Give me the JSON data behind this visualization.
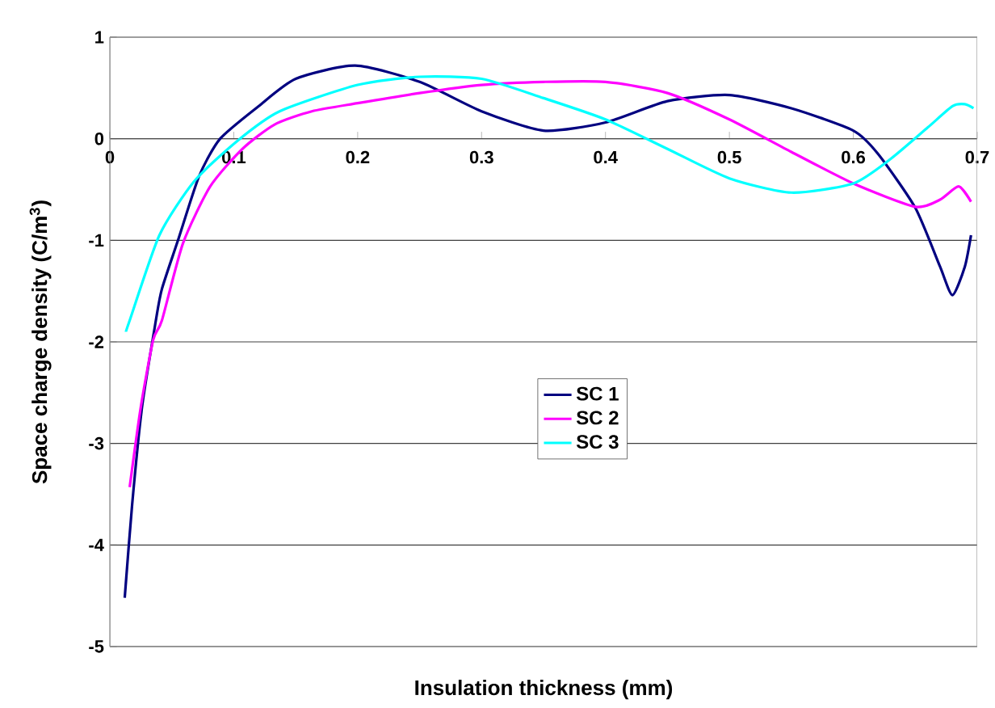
{
  "chart_data": {
    "type": "line",
    "xlabel": "Insulation thickness (mm)",
    "ylabel": "Space charge density (C/m$^{3}$)",
    "xlim": [
      0,
      0.7
    ],
    "ylim": [
      -5,
      1
    ],
    "xticks": [
      0,
      0.1,
      0.2,
      0.3,
      0.4,
      0.5,
      0.6,
      0.7
    ],
    "yticks": [
      -5,
      -4,
      -3,
      -2,
      -1,
      0,
      1
    ],
    "grid": "y",
    "legend": "center",
    "marker": "none",
    "line_style": "solid",
    "series": [
      {
        "name": "SC 1",
        "color": "#000080",
        "x": [
          0.012,
          0.018,
          0.026,
          0.037,
          0.042,
          0.055,
          0.072,
          0.089,
          0.12,
          0.15,
          0.198,
          0.25,
          0.3,
          0.35,
          0.4,
          0.45,
          0.5,
          0.55,
          0.6,
          0.62,
          0.65,
          0.67,
          0.68,
          0.69,
          0.695
        ],
        "values": [
          -4.52,
          -3.6,
          -2.64,
          -1.8,
          -1.48,
          -1.0,
          -0.37,
          0.0,
          0.32,
          0.59,
          0.72,
          0.56,
          0.27,
          0.08,
          0.16,
          0.37,
          0.43,
          0.3,
          0.08,
          -0.15,
          -0.68,
          -1.26,
          -1.54,
          -1.26,
          -0.95
        ]
      },
      {
        "name": "SC 2",
        "color": "#ff00ff",
        "x": [
          0.016,
          0.025,
          0.035,
          0.042,
          0.059,
          0.081,
          0.107,
          0.133,
          0.163,
          0.2,
          0.25,
          0.3,
          0.35,
          0.4,
          0.45,
          0.5,
          0.55,
          0.6,
          0.65,
          0.67,
          0.685,
          0.695
        ],
        "values": [
          -3.43,
          -2.64,
          -1.98,
          -1.79,
          -1.03,
          -0.47,
          -0.1,
          0.14,
          0.27,
          0.35,
          0.45,
          0.53,
          0.56,
          0.56,
          0.45,
          0.19,
          -0.13,
          -0.44,
          -0.67,
          -0.6,
          -0.47,
          -0.62
        ]
      },
      {
        "name": "SC 3",
        "color": "#00ffff",
        "x": [
          0.013,
          0.016,
          0.04,
          0.068,
          0.103,
          0.137,
          0.2,
          0.25,
          0.3,
          0.35,
          0.4,
          0.45,
          0.5,
          0.55,
          0.6,
          0.63,
          0.66,
          0.68,
          0.69,
          0.697
        ],
        "values": [
          -1.9,
          -1.79,
          -0.95,
          -0.42,
          -0.02,
          0.27,
          0.53,
          0.61,
          0.59,
          0.4,
          0.19,
          -0.1,
          -0.39,
          -0.53,
          -0.44,
          -0.2,
          0.11,
          0.32,
          0.34,
          0.3
        ]
      }
    ]
  }
}
